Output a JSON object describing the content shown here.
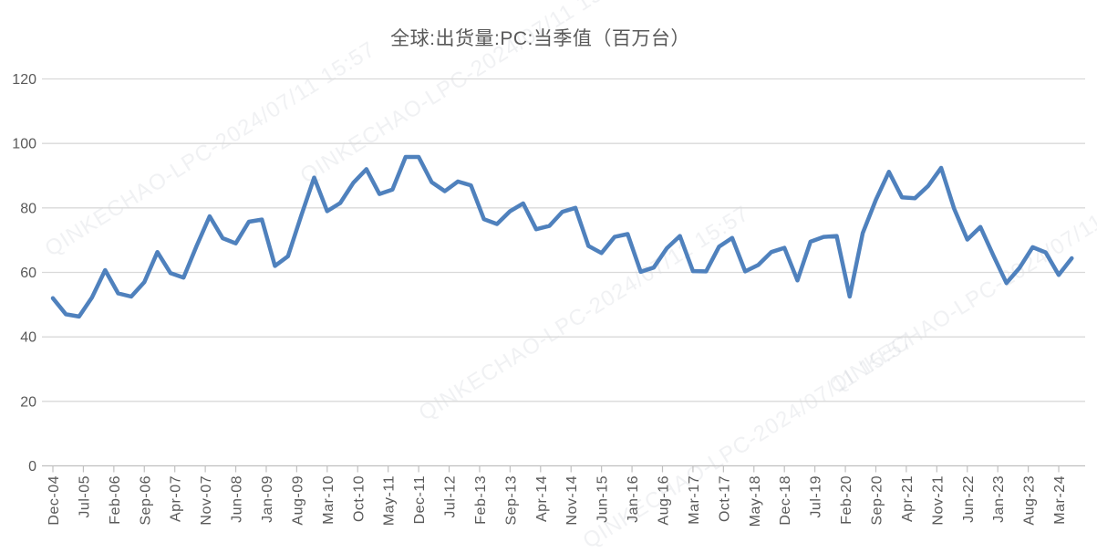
{
  "chart": {
    "title": "全球:出货量:PC:当季值（百万台）"
  },
  "watermark": {
    "text": "QINKECHAO-LPC-2024/07/11 15:57"
  },
  "chart_data": {
    "type": "line",
    "title": "全球:出货量:PC:当季值（百万台）",
    "ylabel": "",
    "xlabel": "",
    "unit": "million units per quarter",
    "frequency": "quarterly",
    "start_quarter": "Dec-04",
    "end_quarter": "Jun-24",
    "ylim": [
      0,
      120
    ],
    "y_ticks": [
      0,
      20,
      40,
      60,
      80,
      100,
      120
    ],
    "grid": true,
    "legend": "none",
    "x_tick_labels": [
      "Dec-04",
      "Jul-05",
      "Feb-06",
      "Sep-06",
      "Apr-07",
      "Nov-07",
      "Jun-08",
      "Jan-09",
      "Aug-09",
      "Mar-10",
      "Oct-10",
      "May-11",
      "Dec-11",
      "Jul-12",
      "Feb-13",
      "Sep-13",
      "Apr-14",
      "Nov-14",
      "Jun-15",
      "Jan-16",
      "Aug-16",
      "Mar-17",
      "Oct-17",
      "May-18",
      "Dec-18",
      "Jul-19",
      "Feb-20",
      "Sep-20",
      "Apr-21",
      "Nov-21",
      "Jun-22",
      "Jan-23",
      "Aug-23",
      "Mar-24"
    ],
    "values": [
      52,
      47,
      46.3,
      52.3,
      60.7,
      53.5,
      52.5,
      57,
      66.3,
      59.8,
      58.4,
      68.2,
      77.4,
      70.6,
      69,
      75.7,
      76.4,
      62,
      65,
      77.5,
      89.4,
      79,
      81.5,
      87.8,
      92,
      84.3,
      85.7,
      95.8,
      95.8,
      88,
      85.2,
      88.2,
      87,
      76.5,
      75,
      79,
      81.4,
      73.4,
      74.4,
      78.8,
      80,
      68.2,
      66,
      71,
      71.9,
      60.2,
      61.5,
      67.5,
      71.3,
      60.4,
      60.3,
      68,
      70.7,
      60.3,
      62.3,
      66.3,
      67.6,
      57.5,
      69.5,
      71,
      71.3,
      52.5,
      72.2,
      82.5,
      91.2,
      83.3,
      83,
      86.8,
      92.4,
      79.7,
      70.2,
      74.1,
      65.2,
      56.7,
      61.4,
      67.8,
      66.2,
      59.2,
      64.4
    ],
    "line_color": "#4f81bd",
    "text_color": "#595959",
    "grid_color": "#d9d9d9",
    "axis_color": "#c0c0c0"
  }
}
